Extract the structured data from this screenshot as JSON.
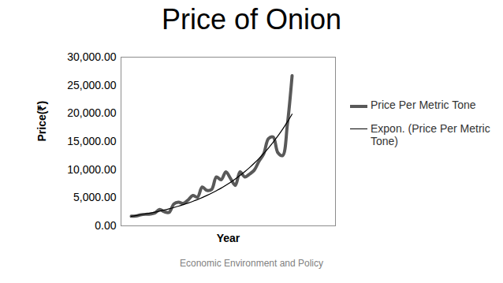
{
  "chart_data": {
    "type": "line",
    "title": "Price of Onion",
    "x_label": "Year",
    "y_label": "Price(₹)",
    "caption": "Economic Environment and Policy",
    "categories": [
      null,
      null,
      null,
      null,
      null,
      null,
      null,
      null,
      null,
      null,
      null,
      null,
      null,
      null,
      null,
      null,
      null,
      null,
      null,
      null,
      null,
      null,
      null,
      null,
      null,
      null,
      null,
      null,
      null,
      null,
      null,
      null,
      null,
      null,
      null
    ],
    "series": [
      {
        "name": "Price Per Metric Tone",
        "color": "#595959",
        "line_style": "solid",
        "values": [
          1700,
          1750,
          1950,
          2050,
          2100,
          2300,
          2900,
          2500,
          2400,
          3900,
          4200,
          4000,
          4600,
          5400,
          5100,
          6900,
          6300,
          6500,
          8700,
          8200,
          9600,
          8400,
          7200,
          9600,
          8700,
          9200,
          9900,
          11500,
          12800,
          15500,
          15800,
          13000,
          12500,
          18000,
          26700
        ]
      },
      {
        "name": "Expon. (Price Per Metric Tone)",
        "color": "#000000",
        "line_style": "solid",
        "values": [
          1700,
          1830,
          1960,
          2110,
          2270,
          2440,
          2620,
          2820,
          3030,
          3260,
          3500,
          3770,
          4050,
          4350,
          4680,
          5030,
          5410,
          5810,
          6250,
          6710,
          7220,
          7760,
          8340,
          8970,
          9640,
          10360,
          11140,
          11970,
          12870,
          13840,
          14880,
          15990,
          17190,
          18480,
          19870
        ]
      }
    ],
    "ylim": [
      0,
      30000
    ],
    "yticks": [
      {
        "value": 0,
        "label": "0.00"
      },
      {
        "value": 5000,
        "label": "5,000.00"
      },
      {
        "value": 10000,
        "label": "10,000.00"
      },
      {
        "value": 15000,
        "label": "15,000.00"
      },
      {
        "value": 20000,
        "label": "20,000.00"
      },
      {
        "value": 25000,
        "label": "25,000.00"
      },
      {
        "value": 30000,
        "label": "30,000.00"
      }
    ],
    "tick_labels": "y",
    "legend": "right"
  }
}
